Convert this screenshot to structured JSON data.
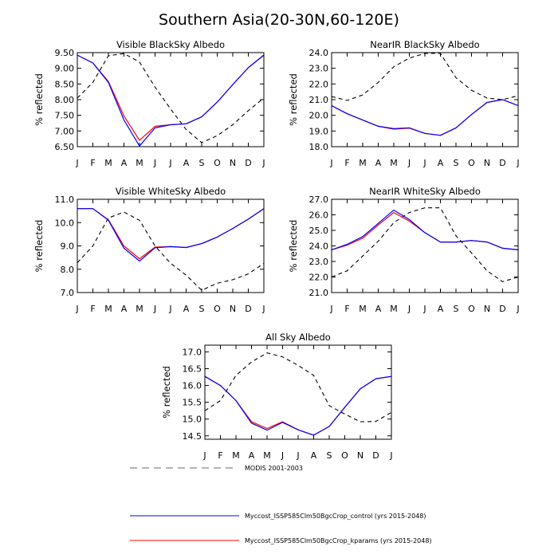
{
  "figure": {
    "title": "Southern Asia(20-30N,60-120E)",
    "ylabel": "% reflected"
  },
  "legend": [
    {
      "name": "MODIS 2001-2003",
      "color": "#000000",
      "dash": true
    },
    {
      "name": "Myccost_ISSP585Clm50BgcCrop_control (yrs 2015-2048)",
      "color": "#0000ff",
      "dash": false
    },
    {
      "name": "Myccost_ISSP585Clm50BgcCrop_kparams (yrs 2015-2048)",
      "color": "#ff0000",
      "dash": false
    }
  ],
  "chart_data": [
    {
      "type": "line",
      "title": "Visible BlackSky Albedo",
      "ylabel": "% reflected",
      "categories": [
        "J",
        "F",
        "M",
        "A",
        "M",
        "J",
        "J",
        "A",
        "S",
        "O",
        "N",
        "D",
        "J"
      ],
      "ylim": [
        6.5,
        9.5
      ],
      "yticks": [
        6.5,
        7.0,
        7.5,
        8.0,
        8.5,
        9.0,
        9.5
      ],
      "ytick_labels": [
        "6.50",
        "7.00",
        "7.50",
        "8.00",
        "8.50",
        "9.00",
        "9.50"
      ],
      "series": [
        {
          "name": "MODIS 2001-2003",
          "color": "#000000",
          "dash": true,
          "values": [
            8.05,
            8.55,
            9.4,
            9.47,
            9.2,
            8.4,
            7.7,
            7.05,
            6.63,
            6.85,
            7.2,
            7.65,
            8.05
          ]
        },
        {
          "name": "Myccost_ISSP585Clm50BgcCrop_kparams (yrs 2015-2048)",
          "color": "#ff0000",
          "dash": false,
          "values": [
            9.42,
            9.17,
            8.58,
            7.48,
            6.7,
            7.15,
            7.2,
            7.23,
            7.45,
            7.92,
            8.48,
            9.02,
            9.42
          ]
        },
        {
          "name": "Myccost_ISSP585Clm50BgcCrop_control (yrs 2015-2048)",
          "color": "#0000ff",
          "dash": false,
          "values": [
            9.42,
            9.17,
            8.55,
            7.35,
            6.52,
            7.1,
            7.2,
            7.23,
            7.45,
            7.92,
            8.48,
            9.02,
            9.42
          ]
        }
      ]
    },
    {
      "type": "line",
      "title": "NearIR BlackSky Albedo",
      "ylabel": "% reflected",
      "categories": [
        "J",
        "F",
        "M",
        "A",
        "M",
        "J",
        "J",
        "A",
        "S",
        "O",
        "N",
        "D",
        "J"
      ],
      "ylim": [
        18.0,
        24.0
      ],
      "yticks": [
        18,
        19,
        20,
        21,
        22,
        23,
        24
      ],
      "ytick_labels": [
        "18.0",
        "19.0",
        "20.0",
        "21.0",
        "22.0",
        "23.0",
        "24.0"
      ],
      "series": [
        {
          "name": "MODIS 2001-2003",
          "color": "#000000",
          "dash": true,
          "values": [
            21.2,
            20.95,
            21.3,
            22.1,
            23.1,
            23.65,
            23.95,
            23.95,
            22.4,
            21.6,
            21.1,
            21.0,
            21.25
          ]
        },
        {
          "name": "Myccost_ISSP585Clm50BgcCrop_kparams (yrs 2015-2048)",
          "color": "#ff0000",
          "dash": false,
          "values": [
            20.62,
            20.1,
            19.7,
            19.3,
            19.12,
            19.18,
            18.85,
            18.72,
            19.2,
            20.05,
            20.82,
            21.0,
            20.62
          ]
        },
        {
          "name": "Myccost_ISSP585Clm50BgcCrop_control (yrs 2015-2048)",
          "color": "#0000ff",
          "dash": false,
          "values": [
            20.62,
            20.1,
            19.7,
            19.3,
            19.15,
            19.2,
            18.85,
            18.72,
            19.2,
            20.05,
            20.82,
            21.0,
            20.62
          ]
        }
      ]
    },
    {
      "type": "line",
      "title": "Visible WhiteSky Albedo",
      "ylabel": "% reflected",
      "categories": [
        "J",
        "F",
        "M",
        "A",
        "M",
        "J",
        "J",
        "A",
        "S",
        "O",
        "N",
        "D",
        "J"
      ],
      "ylim": [
        7.0,
        11.0
      ],
      "yticks": [
        7,
        8,
        9,
        10,
        11
      ],
      "ytick_labels": [
        "7.0",
        "8.0",
        "9.0",
        "10.0",
        "11.0"
      ],
      "series": [
        {
          "name": "MODIS 2001-2003",
          "color": "#000000",
          "dash": true,
          "values": [
            8.28,
            9.0,
            10.2,
            10.45,
            10.1,
            9.0,
            8.25,
            7.75,
            7.1,
            7.4,
            7.55,
            7.8,
            8.25
          ]
        },
        {
          "name": "Myccost_ISSP585Clm50BgcCrop_kparams (yrs 2015-2048)",
          "color": "#ff0000",
          "dash": false,
          "values": [
            10.6,
            10.6,
            10.12,
            9.0,
            8.45,
            8.95,
            8.97,
            8.93,
            9.1,
            9.38,
            9.75,
            10.15,
            10.6
          ]
        },
        {
          "name": "Myccost_ISSP585Clm50BgcCrop_control (yrs 2015-2048)",
          "color": "#0000ff",
          "dash": false,
          "values": [
            10.6,
            10.6,
            10.1,
            8.9,
            8.35,
            8.92,
            8.97,
            8.93,
            9.1,
            9.38,
            9.75,
            10.15,
            10.6
          ]
        }
      ]
    },
    {
      "type": "line",
      "title": "NearIR WhiteSky Albedo",
      "ylabel": "% reflected",
      "categories": [
        "J",
        "F",
        "M",
        "A",
        "M",
        "J",
        "J",
        "A",
        "S",
        "O",
        "N",
        "D",
        "J"
      ],
      "ylim": [
        21.0,
        27.0
      ],
      "yticks": [
        21,
        22,
        23,
        24,
        25,
        26,
        27
      ],
      "ytick_labels": [
        "21.0",
        "22.0",
        "23.0",
        "24.0",
        "25.0",
        "26.0",
        "27.0"
      ],
      "series": [
        {
          "name": "MODIS 2001-2003",
          "color": "#000000",
          "dash": true,
          "values": [
            22.0,
            22.4,
            23.35,
            24.3,
            25.5,
            26.15,
            26.45,
            26.45,
            24.65,
            23.55,
            22.4,
            21.7,
            22.0
          ]
        },
        {
          "name": "Myccost_ISSP585Clm50BgcCrop_kparams (yrs 2015-2048)",
          "color": "#ff0000",
          "dash": false,
          "values": [
            23.75,
            24.05,
            24.5,
            25.35,
            26.15,
            25.6,
            24.85,
            24.25,
            24.25,
            24.35,
            24.25,
            23.85,
            23.75
          ]
        },
        {
          "name": "Myccost_ISSP585Clm50BgcCrop_control (yrs 2015-2048)",
          "color": "#0000ff",
          "dash": false,
          "values": [
            23.75,
            24.1,
            24.6,
            25.45,
            26.3,
            25.7,
            24.85,
            24.25,
            24.25,
            24.35,
            24.25,
            23.85,
            23.75
          ]
        }
      ]
    },
    {
      "type": "line",
      "title": "All Sky Albedo",
      "ylabel": "% reflected",
      "categories": [
        "J",
        "F",
        "M",
        "A",
        "M",
        "J",
        "J",
        "A",
        "S",
        "O",
        "N",
        "D",
        "J"
      ],
      "ylim": [
        14.4,
        17.2
      ],
      "yticks": [
        14.5,
        15.0,
        15.5,
        16.0,
        16.5,
        17.0
      ],
      "ytick_labels": [
        "14.5",
        "15.0",
        "15.5",
        "16.0",
        "16.5",
        "17.0"
      ],
      "series": [
        {
          "name": "MODIS 2001-2003",
          "color": "#000000",
          "dash": true,
          "values": [
            15.25,
            15.55,
            16.3,
            16.7,
            16.97,
            16.85,
            16.6,
            16.3,
            15.4,
            15.15,
            14.92,
            14.93,
            15.2
          ]
        },
        {
          "name": "Myccost_ISSP585Clm50BgcCrop_kparams (yrs 2015-2048)",
          "color": "#ff0000",
          "dash": false,
          "values": [
            16.27,
            16.0,
            15.55,
            14.92,
            14.72,
            14.92,
            14.68,
            14.52,
            14.78,
            15.35,
            15.9,
            16.2,
            16.27
          ]
        },
        {
          "name": "Myccost_ISSP585Clm50BgcCrop_control (yrs 2015-2048)",
          "color": "#0000ff",
          "dash": false,
          "values": [
            16.27,
            16.0,
            15.55,
            14.88,
            14.67,
            14.9,
            14.68,
            14.52,
            14.78,
            15.35,
            15.9,
            16.2,
            16.27
          ]
        }
      ]
    }
  ]
}
